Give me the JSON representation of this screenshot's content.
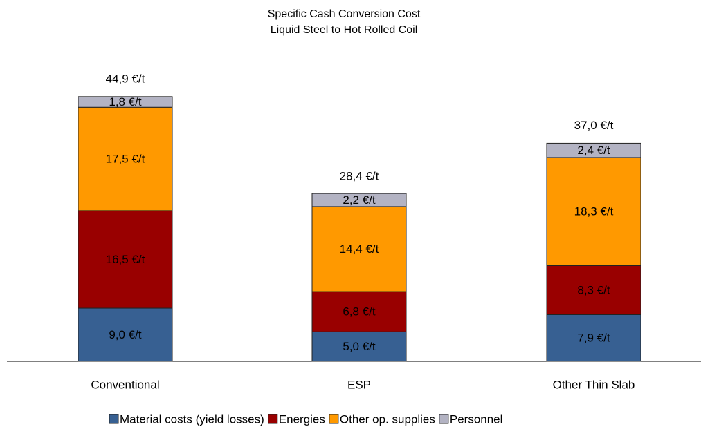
{
  "chart_data": {
    "type": "stacked_bar",
    "title": "Specific Cash Conversion Cost",
    "subtitle": "Liquid Steel to Hot Rolled Coil",
    "categories": [
      "Conventional",
      "ESP",
      "Other Thin Slab"
    ],
    "series": [
      {
        "name": "Material costs (yield losses)",
        "color": "#376092",
        "values": [
          9.0,
          5.0,
          7.9
        ],
        "value_labels": [
          "9,0 €/t",
          "5,0 €/t",
          "7,9 €/t"
        ]
      },
      {
        "name": "Energies",
        "color": "#990000",
        "values": [
          16.5,
          6.8,
          8.3
        ],
        "value_labels": [
          "16,5 €/t",
          "6,8 €/t",
          "8,3 €/t"
        ]
      },
      {
        "name": "Other op. supplies",
        "color": "#ff9900",
        "values": [
          17.5,
          14.4,
          18.3
        ],
        "value_labels": [
          "17,5 €/t",
          "14,4 €/t",
          "18,3 €/t"
        ]
      },
      {
        "name": "Personnel",
        "color": "#b3b3c3",
        "values": [
          1.8,
          2.2,
          2.4
        ],
        "value_labels": [
          "1,8 €/t",
          "2,2 €/t",
          "2,4 €/t"
        ]
      }
    ],
    "totals": [
      44.9,
      28.4,
      37.0
    ],
    "total_labels": [
      "44,9 €/t",
      "28,4 €/t",
      "37,0 €/t"
    ],
    "legend": "bottom"
  }
}
